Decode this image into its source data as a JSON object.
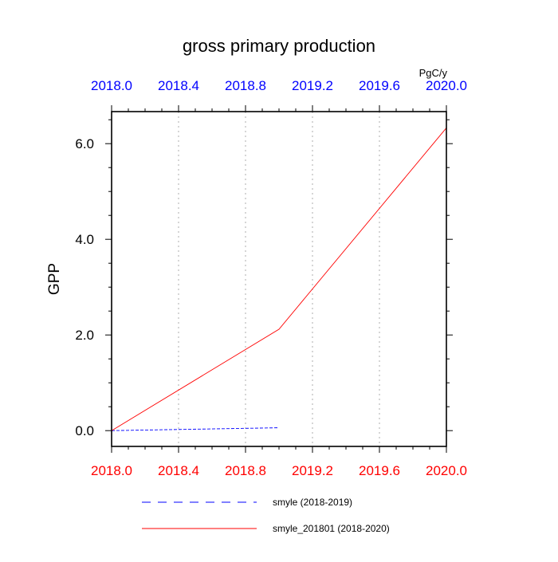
{
  "chart_data": {
    "type": "line",
    "title": "gross primary production",
    "units": "PgC/y",
    "ylabel": "GPP",
    "xlim": [
      2018.0,
      2020.0
    ],
    "ylim": [
      -0.33,
      6.67
    ],
    "grid": "vertical dotted at major x ticks",
    "x_ticks": [
      2018.0,
      2018.4,
      2018.8,
      2019.2,
      2019.6,
      2020.0
    ],
    "x_tick_labels": [
      "2018.0",
      "2018.4",
      "2018.8",
      "2019.2",
      "2019.6",
      "2020.0"
    ],
    "x_top_tick_labels": [
      "2018.0",
      "2018.4",
      "2018.8",
      "2019.2",
      "2019.6",
      "2020.0"
    ],
    "y_ticks": [
      0.0,
      2.0,
      4.0,
      6.0
    ],
    "y_tick_labels": [
      "0.0",
      "2.0",
      "4.0",
      "6.0"
    ],
    "legend_placement": "bottom",
    "colors": {
      "top_axis_labels": "#0000ff",
      "bottom_axis_labels": "#ff0000"
    },
    "series": [
      {
        "name": "smyle (2018-2019)",
        "color": "#0000ff",
        "dash": "dashed",
        "x": [
          2018.0,
          2019.0
        ],
        "y": [
          0.0,
          0.06
        ]
      },
      {
        "name": "smyle_201801 (2018-2020)",
        "color": "#ff0000",
        "dash": "solid",
        "x": [
          2018.0,
          2019.0,
          2020.0
        ],
        "y": [
          0.0,
          2.12,
          6.33
        ]
      }
    ]
  }
}
